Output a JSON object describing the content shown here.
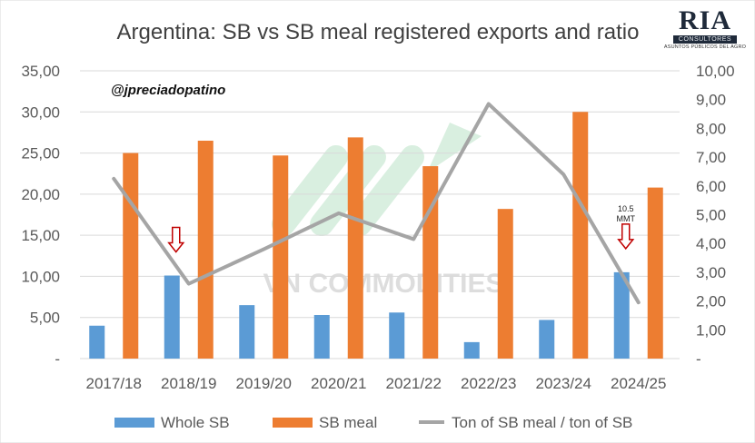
{
  "chart_data": {
    "type": "bar",
    "title": "Argentina: SB vs SB meal registered exports and ratio",
    "author_handle": "@jpreciadopatino",
    "watermark": "VN COMMODITIES",
    "categories": [
      "2017/18",
      "2018/19",
      "2019/20",
      "2020/21",
      "2021/22",
      "2022/23",
      "2023/24",
      "2024/25"
    ],
    "left_axis": {
      "ylim": [
        0,
        35
      ],
      "ticks": [
        0,
        5,
        10,
        15,
        20,
        25,
        30,
        35
      ],
      "tick_labels": [
        "-",
        "5,00",
        "10,00",
        "15,00",
        "20,00",
        "25,00",
        "30,00",
        "35,00"
      ]
    },
    "right_axis": {
      "ylim": [
        0,
        10
      ],
      "ticks": [
        0,
        1,
        2,
        3,
        4,
        5,
        6,
        7,
        8,
        9,
        10
      ],
      "tick_labels": [
        "-",
        "1,00",
        "2,00",
        "3,00",
        "4,00",
        "5,00",
        "6,00",
        "7,00",
        "8,00",
        "9,00",
        "10,00"
      ]
    },
    "series": [
      {
        "name": "Whole SB",
        "kind": "bar",
        "axis": "left",
        "color": "#5b9bd5",
        "values": [
          4.0,
          10.1,
          6.5,
          5.3,
          5.6,
          2.0,
          4.7,
          10.5
        ]
      },
      {
        "name": "SB meal",
        "kind": "bar",
        "axis": "left",
        "color": "#ed7d31",
        "values": [
          25.0,
          26.5,
          24.7,
          26.9,
          23.4,
          18.2,
          30.0,
          20.8
        ]
      },
      {
        "name": "Ton of SB meal / ton of SB",
        "kind": "line",
        "axis": "right",
        "color": "#a5a5a5",
        "values": [
          6.25,
          2.6,
          3.8,
          5.05,
          4.15,
          8.85,
          6.4,
          1.95
        ]
      }
    ],
    "annotations": [
      {
        "category": "2018/19",
        "type": "arrow-down",
        "text": ""
      },
      {
        "category": "2024/25",
        "type": "arrow-down",
        "text": "10.5 MMT"
      }
    ],
    "legend_position": "bottom",
    "grid": true
  },
  "logo": {
    "mark": "RIA",
    "subtitle": "CONSULTORES",
    "tagline": "ASUNTOS PÚBLICOS DEL AGRO"
  },
  "colors": {
    "grid": "#d9d9d9",
    "axis_text": "#595959",
    "title_text": "#404040",
    "annotation_arrow": "#c00000",
    "watermark_green": "#b9e2c6",
    "watermark_text": "#d2d2d2"
  }
}
